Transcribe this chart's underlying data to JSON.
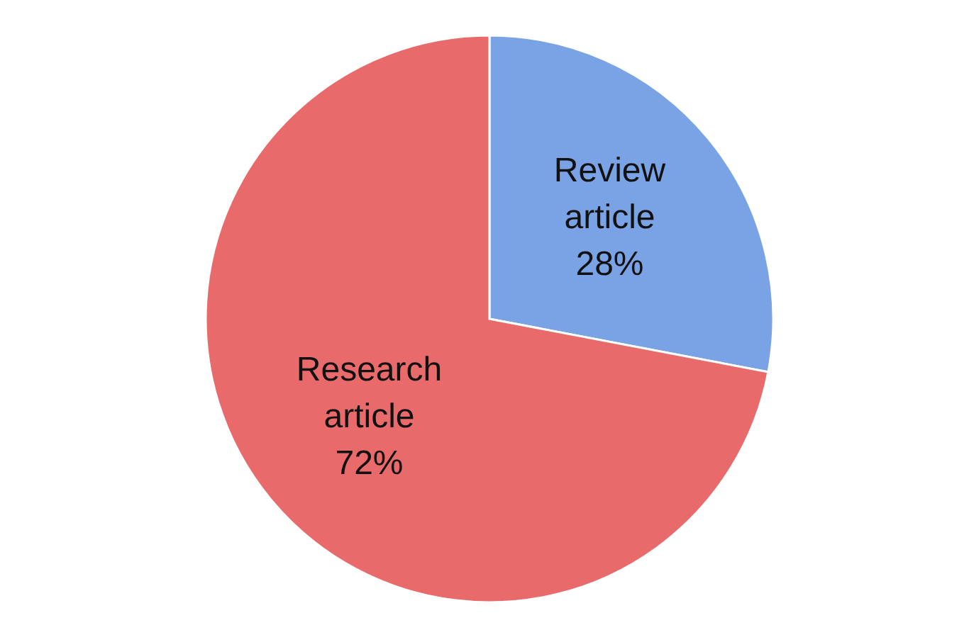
{
  "chart_data": {
    "type": "pie",
    "categories": [
      "Review article",
      "Research article"
    ],
    "values": [
      28,
      72
    ],
    "colors": [
      "#7aa3e6",
      "#e96a6a"
    ],
    "value_labels": [
      "28%",
      "72%"
    ]
  }
}
